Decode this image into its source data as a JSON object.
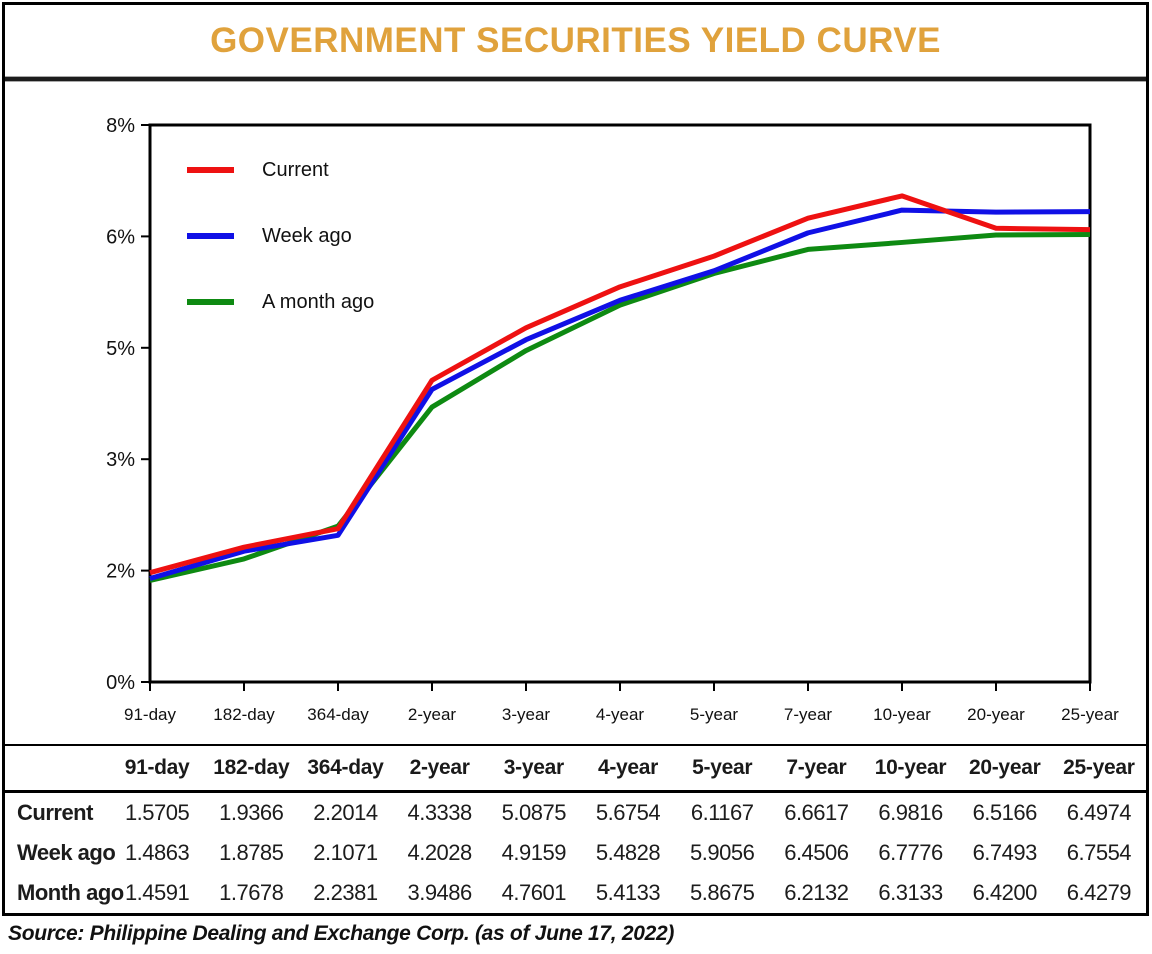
{
  "title": "GOVERNMENT SECURITIES YIELD CURVE",
  "source_note": "Source: Philippine Dealing and Exchange Corp. (as of June 17, 2022)",
  "colors": {
    "title": "#E0A23C",
    "frame": "#000000",
    "current": "#EE1111",
    "week_ago": "#1010E6",
    "month_ago": "#0E8A12",
    "text": "#1A1A1A"
  },
  "chart_data": {
    "type": "line",
    "title": "GOVERNMENT SECURITIES YIELD CURVE",
    "categories": [
      "91-day",
      "182-day",
      "364-day",
      "2-year",
      "3-year",
      "4-year",
      "5-year",
      "7-year",
      "10-year",
      "20-year",
      "25-year"
    ],
    "series": [
      {
        "name": "Current",
        "color": "#EE1111",
        "values": [
          1.5705,
          1.9366,
          2.2014,
          4.3338,
          5.0875,
          5.6754,
          6.1167,
          6.6617,
          6.9816,
          6.5166,
          6.4974
        ]
      },
      {
        "name": "Week ago",
        "color": "#1010E6",
        "values": [
          1.4863,
          1.8785,
          2.1071,
          4.2028,
          4.9159,
          5.4828,
          5.9056,
          6.4506,
          6.7776,
          6.7493,
          6.7554
        ]
      },
      {
        "name": "A month ago",
        "color": "#0E8A12",
        "values": [
          1.4591,
          1.7678,
          2.2381,
          3.9486,
          4.7601,
          5.4133,
          5.8675,
          6.2132,
          6.3133,
          6.42,
          6.4279
        ]
      }
    ],
    "xlabel": "",
    "ylabel": "",
    "ylim": [
      0,
      8
    ],
    "y_ticks": [
      {
        "label": "0%",
        "value": 0
      },
      {
        "label": "2%",
        "value": 1.6
      },
      {
        "label": "3%",
        "value": 3.2
      },
      {
        "label": "5%",
        "value": 4.8
      },
      {
        "label": "6%",
        "value": 6.4
      },
      {
        "label": "8%",
        "value": 8
      }
    ],
    "grid": false,
    "legend_position": "inside-top-left"
  },
  "table": {
    "columns": [
      "91-day",
      "182-day",
      "364-day",
      "2-year",
      "3-year",
      "4-year",
      "5-year",
      "7-year",
      "10-year",
      "20-year",
      "25-year"
    ],
    "rows": [
      {
        "label": "Current",
        "values": [
          "1.5705",
          "1.9366",
          "2.2014",
          "4.3338",
          "5.0875",
          "5.6754",
          "6.1167",
          "6.6617",
          "6.9816",
          "6.5166",
          "6.4974"
        ]
      },
      {
        "label": "Week ago",
        "values": [
          "1.4863",
          "1.8785",
          "2.1071",
          "4.2028",
          "4.9159",
          "5.4828",
          "5.9056",
          "6.4506",
          "6.7776",
          "6.7493",
          "6.7554"
        ]
      },
      {
        "label": "Month ago",
        "values": [
          "1.4591",
          "1.7678",
          "2.2381",
          "3.9486",
          "4.7601",
          "5.4133",
          "5.8675",
          "6.2132",
          "6.3133",
          "6.4200",
          "6.4279"
        ]
      }
    ]
  }
}
